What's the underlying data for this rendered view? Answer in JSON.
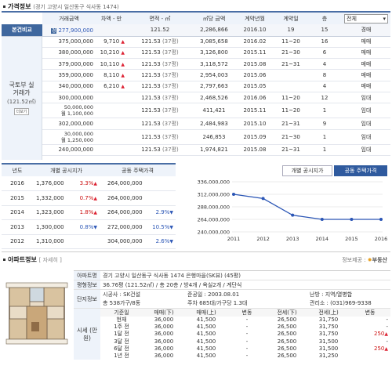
{
  "price_section": {
    "title": "가격정보",
    "location": "(경기 고양시 일산동구 식사동 1474)",
    "headers": [
      "거래금액",
      "차액 - 만",
      "면적 - ㎡",
      "㎡당 금액",
      "계약년월",
      "계약일",
      "층"
    ],
    "filter_value": "전체",
    "compare_row": {
      "label": "본건비교",
      "badge": "경",
      "amount": "277,900,000",
      "area": "121.52",
      "per_m2": "2,286,866",
      "ym": "2016.10",
      "day": "19",
      "floor": "15",
      "kind": "경매"
    },
    "group_label": "국토부 실거래가",
    "group_sublabel": "(121.52㎡)",
    "group_link": "더보기",
    "rows": [
      {
        "amount": "375,000,000",
        "diff": "9,710",
        "dir": "up",
        "area": "121.53",
        "py": "(37평)",
        "per_m2": "3,085,658",
        "ym": "2016.02",
        "day": "11~20",
        "floor": "16",
        "kind": "매매"
      },
      {
        "amount": "380,000,000",
        "diff": "10,210",
        "dir": "up",
        "area": "121.53",
        "py": "(37평)",
        "per_m2": "3,126,800",
        "ym": "2015.11",
        "day": "21~30",
        "floor": "6",
        "kind": "매매"
      },
      {
        "amount": "379,000,000",
        "diff": "10,110",
        "dir": "up",
        "area": "121.53",
        "py": "(37평)",
        "per_m2": "3,118,572",
        "ym": "2015.08",
        "day": "21~31",
        "floor": "4",
        "kind": "매매"
      },
      {
        "amount": "359,000,000",
        "diff": "8,110",
        "dir": "up",
        "area": "121.53",
        "py": "(37평)",
        "per_m2": "2,954,003",
        "ym": "2015.06",
        "day": "",
        "floor": "8",
        "kind": "매매"
      },
      {
        "amount": "340,000,000",
        "diff": "6,210",
        "dir": "up",
        "area": "121.53",
        "py": "(37평)",
        "per_m2": "2,797,663",
        "ym": "2015.05",
        "day": "",
        "floor": "4",
        "kind": "매매"
      },
      {
        "amount": "300,000,000",
        "diff": "",
        "dir": "",
        "area": "121.53",
        "py": "(37평)",
        "per_m2": "2,468,526",
        "ym": "2016.06",
        "day": "11~20",
        "floor": "12",
        "kind": "임대"
      },
      {
        "amount": "50,000,000",
        "amount2": "월 1,100,000",
        "diff": "",
        "dir": "",
        "area": "121.53",
        "py": "(37평)",
        "per_m2": "411,421",
        "ym": "2015.11",
        "day": "11~20",
        "floor": "1",
        "kind": "임대"
      },
      {
        "amount": "302,000,000",
        "diff": "",
        "dir": "",
        "area": "121.53",
        "py": "(37평)",
        "per_m2": "2,484,983",
        "ym": "2015.10",
        "day": "21~31",
        "floor": "9",
        "kind": "임대"
      },
      {
        "amount": "30,000,000",
        "amount2": "월 1,250,000",
        "diff": "",
        "dir": "",
        "area": "121.53",
        "py": "(37평)",
        "per_m2": "246,853",
        "ym": "2015.09",
        "day": "21~30",
        "floor": "1",
        "kind": "임대"
      },
      {
        "amount": "240,000,000",
        "diff": "",
        "dir": "",
        "area": "121.53",
        "py": "(37평)",
        "per_m2": "1,974,821",
        "ym": "2015.08",
        "day": "21~31",
        "floor": "1",
        "kind": "임대"
      }
    ]
  },
  "notice_section": {
    "headers": [
      "년도",
      "개별 공시지가",
      "공동 주택가격"
    ],
    "rows": [
      {
        "year": "2016",
        "land": "1,376,000",
        "land_pct": "3.3%",
        "land_dir": "up",
        "house": "264,000,000",
        "house_pct": "",
        "house_dir": ""
      },
      {
        "year": "2015",
        "land": "1,332,000",
        "land_pct": "0.7%",
        "land_dir": "up",
        "house": "264,000,000",
        "house_pct": "",
        "house_dir": ""
      },
      {
        "year": "2014",
        "land": "1,323,000",
        "land_pct": "1.8%",
        "land_dir": "up",
        "house": "264,000,000",
        "house_pct": "2.9%",
        "house_dir": "down"
      },
      {
        "year": "2013",
        "land": "1,300,000",
        "land_pct": "0.8%",
        "land_dir": "down",
        "house": "272,000,000",
        "house_pct": "10.5%",
        "house_dir": "down"
      },
      {
        "year": "2012",
        "land": "1,310,000",
        "land_pct": "",
        "land_dir": "",
        "house": "304,000,000",
        "house_pct": "2.6%",
        "house_dir": "down"
      }
    ]
  },
  "chart_tabs": [
    "개별 공시지가",
    "공동 주택가격"
  ],
  "chart_data": {
    "type": "line",
    "title": "",
    "x": [
      "2011",
      "2012",
      "2013",
      "2014",
      "2015",
      "2016"
    ],
    "series": [
      {
        "values": [
          312000000,
          304000000,
          272000000,
          264000000,
          264000000,
          264000000
        ]
      }
    ],
    "y_ticks": [
      "336,000,000",
      "312,000,000",
      "288,000,000",
      "264,000,000",
      "240,000,000"
    ],
    "ylim": [
      240000000,
      336000000
    ],
    "grid": true,
    "color": "#2a55b5"
  },
  "apt_section": {
    "title": "아파트정보",
    "detail_link": "자세히",
    "source": "정보제공 :",
    "source_brand": "부동산",
    "rows": {
      "name_label": "아파트명",
      "name_value": "경기 고양시 일산동구 식사동 1474 은행마을(SK뷰) (45평)",
      "area_label": "평형정보",
      "area_value": "36.76평 (121.52㎡) / 총 20층 / 방4개 / 욕실2개 / 계단식",
      "complex_label": "단지정보",
      "builder": "시공사 : SK건설",
      "completed": "준공일 : 2003.08.01",
      "heating": "난방 : 지역/열병합",
      "households": "총 538가구/8동",
      "parking": "주차 685대/가구당 1.3대",
      "office": "관리소 : (031)969-9338",
      "price_label": "시세 (만원)"
    },
    "price_headers": [
      "기준일",
      "매매(下)",
      "매매(上)",
      "변동",
      "전세(下)",
      "전세(上)",
      "변동"
    ],
    "price_rows": [
      {
        "date": "현재",
        "s_lo": "36,000",
        "s_hi": "41,500",
        "s_ch": "-",
        "r_lo": "26,500",
        "r_hi": "31,750",
        "r_ch": "-",
        "r_dir": ""
      },
      {
        "date": "1주 전",
        "s_lo": "36,000",
        "s_hi": "41,500",
        "s_ch": "-",
        "r_lo": "26,500",
        "r_hi": "31,750",
        "r_ch": "-",
        "r_dir": ""
      },
      {
        "date": "1달 전",
        "s_lo": "36,000",
        "s_hi": "41,500",
        "s_ch": "-",
        "r_lo": "26,500",
        "r_hi": "31,750",
        "r_ch": "250",
        "r_dir": "up"
      },
      {
        "date": "3달 전",
        "s_lo": "36,000",
        "s_hi": "41,500",
        "s_ch": "-",
        "r_lo": "26,500",
        "r_hi": "31,500",
        "r_ch": "-",
        "r_dir": ""
      },
      {
        "date": "6달 전",
        "s_lo": "36,000",
        "s_hi": "41,500",
        "s_ch": "-",
        "r_lo": "26,500",
        "r_hi": "31,500",
        "r_ch": "250",
        "r_dir": "up"
      },
      {
        "date": "1년 전",
        "s_lo": "36,000",
        "s_hi": "41,500",
        "s_ch": "-",
        "r_lo": "26,500",
        "r_hi": "31,250",
        "r_ch": "",
        "r_dir": ""
      }
    ]
  }
}
